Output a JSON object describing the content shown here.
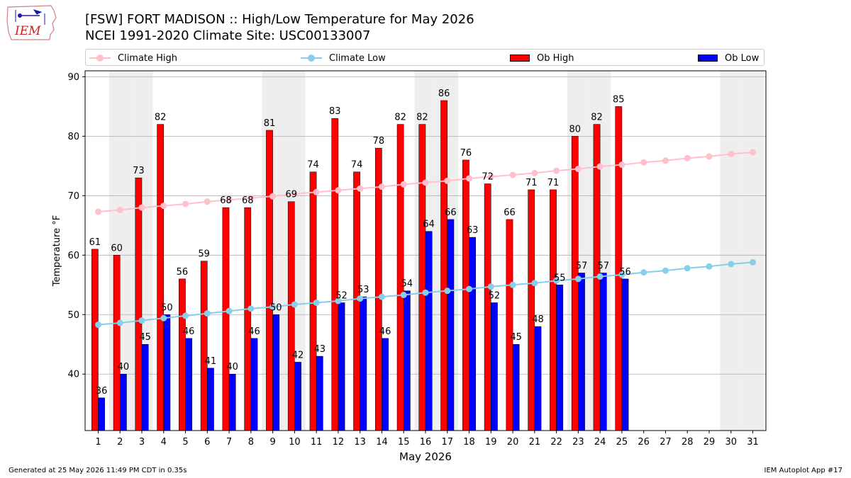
{
  "header": {
    "logo_text": "IEM",
    "title_line1": "[FSW] FORT MADISON :: High/Low Temperature for May 2026",
    "title_line2": "NCEI 1991-2020 Climate Site: USC00133007"
  },
  "legend": {
    "climate_high": "Climate High",
    "climate_low": "Climate Low",
    "ob_high": "Ob High",
    "ob_low": "Ob Low",
    "placement": "top, above plot"
  },
  "footer": {
    "generated": "Generated at 25 May 2026 11:49 PM CDT in 0.35s",
    "app": "IEM Autoplot App #17"
  },
  "colors": {
    "ob_high": "#ff0000",
    "ob_low": "#0000ff",
    "climate_high": "#ffc0cb",
    "climate_low": "#87ceeb",
    "weekend_band": "#eeeeee",
    "grid": "#b0b0b0"
  },
  "chart_data": {
    "type": "bar",
    "xlabel": "May 2026",
    "ylabel": "Temperature °F",
    "ylim": [
      30.5,
      91
    ],
    "yticks": [
      40,
      50,
      60,
      70,
      80,
      90
    ],
    "grid": "horizontal",
    "categories": [
      1,
      2,
      3,
      4,
      5,
      6,
      7,
      8,
      9,
      10,
      11,
      12,
      13,
      14,
      15,
      16,
      17,
      18,
      19,
      20,
      21,
      22,
      23,
      24,
      25,
      26,
      27,
      28,
      29,
      30,
      31
    ],
    "shaded_days": [
      2,
      3,
      9,
      10,
      16,
      17,
      23,
      24,
      30,
      31
    ],
    "series": [
      {
        "name": "Ob High",
        "kind": "bar",
        "values": [
          61,
          60,
          73,
          82,
          56,
          59,
          68,
          68,
          81,
          69,
          74,
          83,
          74,
          78,
          82,
          82,
          86,
          76,
          72,
          66,
          71,
          71,
          80,
          82,
          85,
          null,
          null,
          null,
          null,
          null,
          null
        ]
      },
      {
        "name": "Ob Low",
        "kind": "bar",
        "values": [
          36,
          40,
          45,
          50,
          46,
          41,
          40,
          46,
          50,
          42,
          43,
          52,
          53,
          46,
          54,
          64,
          66,
          63,
          52,
          45,
          48,
          55,
          57,
          57,
          56,
          null,
          null,
          null,
          null,
          null,
          null
        ]
      },
      {
        "name": "Climate High",
        "kind": "line",
        "values": [
          67.3,
          67.6,
          68.0,
          68.3,
          68.6,
          69.0,
          69.3,
          69.6,
          69.9,
          70.3,
          70.6,
          70.9,
          71.2,
          71.5,
          71.9,
          72.2,
          72.5,
          72.9,
          73.2,
          73.5,
          73.8,
          74.2,
          74.5,
          74.9,
          75.2,
          75.6,
          75.9,
          76.3,
          76.6,
          77.0,
          77.3
        ]
      },
      {
        "name": "Climate Low",
        "kind": "line",
        "values": [
          48.3,
          48.6,
          49.0,
          49.4,
          49.8,
          50.2,
          50.6,
          51.0,
          51.3,
          51.7,
          52.0,
          52.3,
          52.7,
          53.0,
          53.3,
          53.7,
          54.0,
          54.3,
          54.7,
          55.0,
          55.3,
          55.7,
          56.0,
          56.4,
          56.7,
          57.1,
          57.4,
          57.8,
          58.1,
          58.5,
          58.8
        ]
      }
    ]
  }
}
